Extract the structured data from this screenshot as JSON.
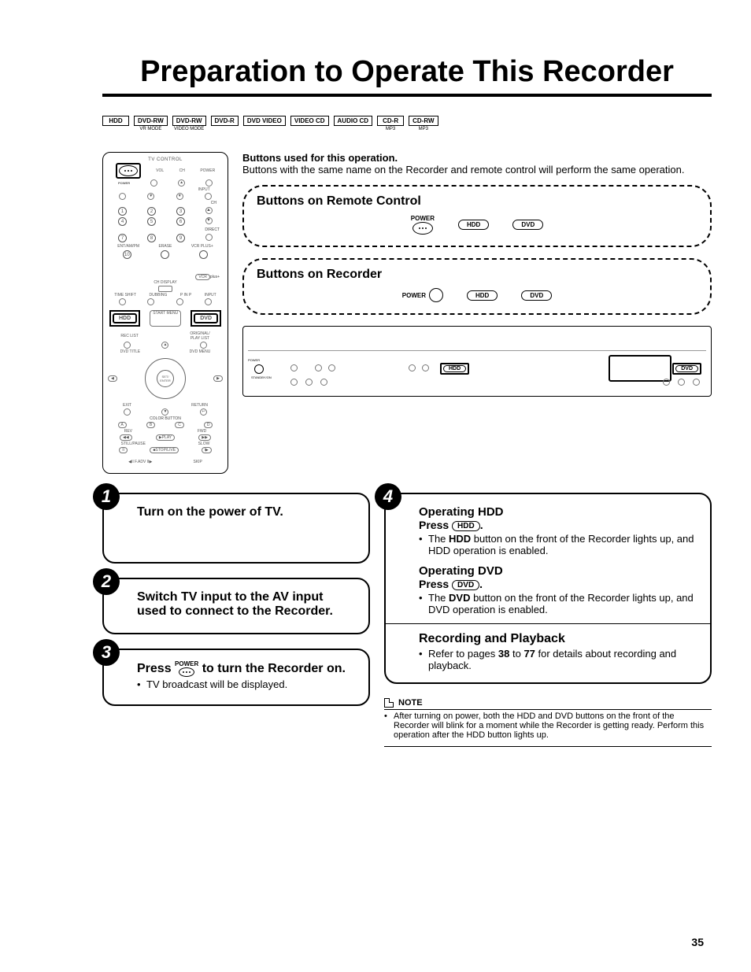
{
  "title": "Preparation to Operate This Recorder",
  "formats": [
    {
      "label": "HDD",
      "sub": ""
    },
    {
      "label": "DVD-RW",
      "sub": "VR MODE"
    },
    {
      "label": "DVD-RW",
      "sub": "VIDEO MODE"
    },
    {
      "label": "DVD-R",
      "sub": ""
    },
    {
      "label": "DVD VIDEO",
      "sub": ""
    },
    {
      "label": "VIDEO CD",
      "sub": ""
    },
    {
      "label": "AUDIO CD",
      "sub": ""
    },
    {
      "label": "CD-R",
      "sub": "MP3"
    },
    {
      "label": "CD-RW",
      "sub": "MP3"
    }
  ],
  "explain": {
    "bold": "Buttons used for this operation.",
    "text": "Buttons with the same name on the Recorder and remote control will perform the same operation."
  },
  "remoteBox": {
    "title": "Buttons on Remote Control",
    "power": "POWER",
    "hdd": "HDD",
    "dvd": "DVD"
  },
  "recorderBox": {
    "title": "Buttons on Recorder",
    "power": "POWER",
    "hdd": "HDD",
    "dvd": "DVD"
  },
  "remote": {
    "tvcontrol": "TV CONTROL",
    "power": "POWER",
    "vol": "VOL",
    "ch": "CH",
    "pwr2": "POWER",
    "input": "INPUT",
    "direct": "DIRECT",
    "ent": "ENT/AM/PM",
    "erase": "ERASE",
    "vcrplus": "VCR PLUS+",
    "chdisp": "CH DISPLAY",
    "timeshift": "TIME SHIFT",
    "dubbing": "DUBBING",
    "pinp": "P IN P",
    "hdd": "HDD",
    "startmenu": "START MENU",
    "dvd": "DVD",
    "reclist": "REC LIST",
    "origpl": "ORIGINAL/\nPLAY LIST",
    "dvdtitle": "DVD TITLE",
    "dvdmenu": "DVD MENU",
    "setenter": "SET/\nENTER",
    "exit": "EXIT",
    "return": "RETURN",
    "colorbtn": "COLOR BUTTON",
    "rev": "REV",
    "play": "▶PLAY",
    "fwd": "FWD",
    "still": "STILL/PAUSE",
    "stoplive": "■STOP/LIVE",
    "slow": "SLOW",
    "fadv": "◀II F.ADV II▶",
    "skip": "SKIP"
  },
  "step1": {
    "title": "Turn on the power of TV."
  },
  "step2": {
    "title": "Switch TV input to the AV input used to connect to the Recorder."
  },
  "step3": {
    "pressPrefix": "Press ",
    "pressSuffix": " to turn the Recorder on.",
    "bullet": "TV broadcast will be displayed.",
    "pwr": "POWER"
  },
  "step4": {
    "hddTitle": "Operating HDD",
    "hddPress": "Press ",
    "hddBtn": "HDD",
    "hddPressEnd": ".",
    "hddBullet": "The HDD button on the front of the Recorder lights up, and HDD operation is enabled.",
    "hddBulletBold": "HDD",
    "dvdTitle": "Operating DVD",
    "dvdPress": "Press ",
    "dvdBtn": "DVD",
    "dvdPressEnd": ".",
    "dvdBullet": "The DVD button on the front of the Recorder lights up, and DVD operation is enabled.",
    "dvdBulletBold": "DVD",
    "recTitle": "Recording and Playback",
    "recBullet": "Refer to pages 38 to 77 for details about recording and playback.",
    "recBold1": "38",
    "recBold2": "77"
  },
  "note": {
    "label": "NOTE",
    "text": "After turning on power, both the HDD and DVD buttons on the front of the Recorder will blink for a moment while the Recorder is getting ready. Perform this operation after the HDD button lights up."
  },
  "pageNum": "35",
  "colors": {
    "text": "#000000",
    "bg": "#ffffff"
  }
}
